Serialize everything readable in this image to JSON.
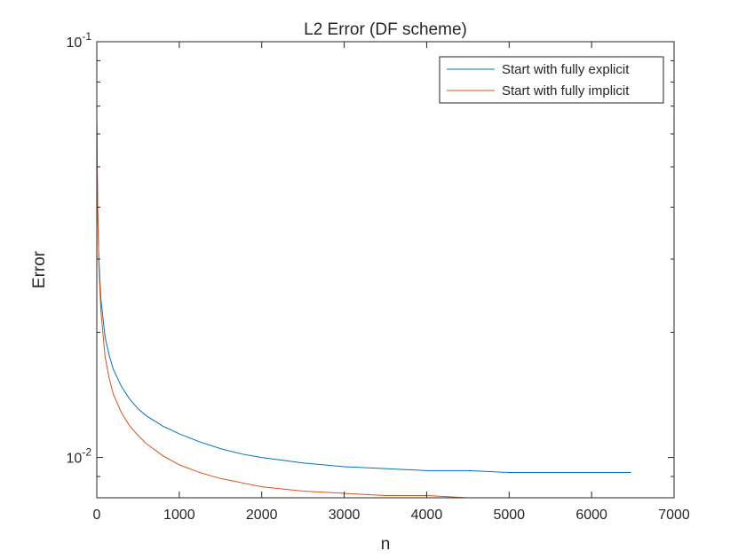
{
  "chart_data": {
    "type": "line",
    "title": "L2 Error (DF scheme)",
    "xlabel": "n",
    "ylabel": "Error",
    "xlim": [
      0,
      7000
    ],
    "ylim": [
      0.008,
      0.1
    ],
    "yscale": "log",
    "grid": false,
    "legend_position": "top-right",
    "xticks": [
      0,
      1000,
      2000,
      3000,
      4000,
      5000,
      6000,
      7000
    ],
    "x_tick_labels": [
      "0",
      "1000",
      "2000",
      "3000",
      "4000",
      "5000",
      "6000",
      "7000"
    ],
    "y_tick_labels": [
      {
        "base": "10",
        "exp": "-1",
        "value": 0.1
      },
      {
        "base": "10",
        "exp": "-2",
        "value": 0.01
      }
    ],
    "series": [
      {
        "name": "Start with fully explicit",
        "color": "#0072BD",
        "x": [
          0,
          5,
          10,
          25,
          50,
          100,
          150,
          200,
          300,
          400,
          500,
          600,
          800,
          1000,
          1250,
          1500,
          1750,
          2000,
          2500,
          3000,
          3500,
          4000,
          4500,
          5000,
          5500,
          6000,
          6480
        ],
        "y": [
          0.065,
          0.05,
          0.04,
          0.03,
          0.024,
          0.0195,
          0.0176,
          0.0163,
          0.0148,
          0.0138,
          0.0131,
          0.0126,
          0.0119,
          0.0114,
          0.0109,
          0.0105,
          0.0102,
          0.01,
          0.0097,
          0.0095,
          0.0094,
          0.0093,
          0.0093,
          0.0092,
          0.0092,
          0.0092,
          0.0092
        ]
      },
      {
        "name": "Start with fully implicit",
        "color": "#D95319",
        "x": [
          0,
          5,
          10,
          25,
          50,
          100,
          150,
          200,
          300,
          400,
          500,
          600,
          800,
          1000,
          1250,
          1500,
          1750,
          2000,
          2500,
          3000,
          3500,
          4000,
          4500,
          5000,
          5500,
          6000,
          6480
        ],
        "y": [
          0.066,
          0.052,
          0.041,
          0.029,
          0.0225,
          0.0175,
          0.0155,
          0.0142,
          0.0128,
          0.0119,
          0.0113,
          0.0108,
          0.0101,
          0.0096,
          0.0092,
          0.0089,
          0.0087,
          0.0085,
          0.0083,
          0.0082,
          0.0081,
          0.0081,
          0.008,
          0.008,
          0.008,
          0.008,
          0.008
        ]
      }
    ]
  }
}
